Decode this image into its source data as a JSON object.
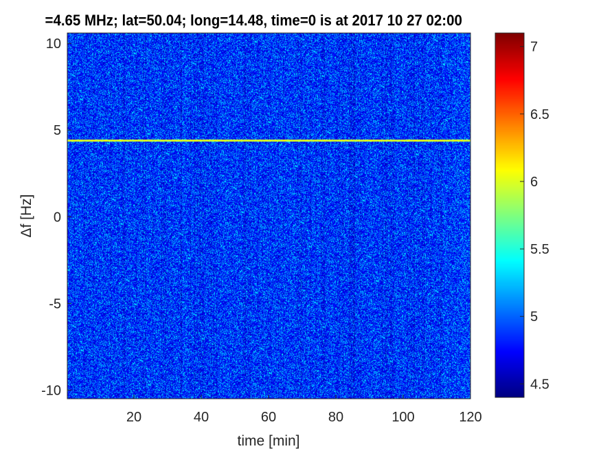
{
  "chart_data": {
    "type": "heatmap",
    "title": "=4.65 MHz;  lat=50.04; long=14.48, time=0 is at 2017 10 27 02:00",
    "xlabel": "time [min]",
    "ylabel": "Δf [Hz]",
    "xlim": [
      0.2,
      120
    ],
    "ylim": [
      -10.5,
      10.6
    ],
    "xticks": [
      "20",
      "40",
      "60",
      "80",
      "100",
      "120"
    ],
    "xtick_values": [
      20,
      40,
      60,
      80,
      100,
      120
    ],
    "yticks": [
      "-10",
      "-5",
      "0",
      "5",
      "10"
    ],
    "ytick_values": [
      -10,
      -5,
      0,
      5,
      10
    ],
    "colorbar": {
      "colormap": "jet",
      "clim": [
        4.4,
        7.1
      ],
      "ticks": [
        "4.5",
        "5",
        "5.5",
        "6",
        "6.5",
        "7"
      ],
      "tick_values": [
        4.5,
        5,
        5.5,
        6,
        6.5,
        7
      ]
    },
    "background_level": [
      4.6,
      5.4
    ],
    "features": [
      {
        "type": "horizontal line",
        "frequency_offset_hz": 4.42,
        "time_range_min": [
          0.2,
          120
        ],
        "value": 6.0
      }
    ]
  }
}
